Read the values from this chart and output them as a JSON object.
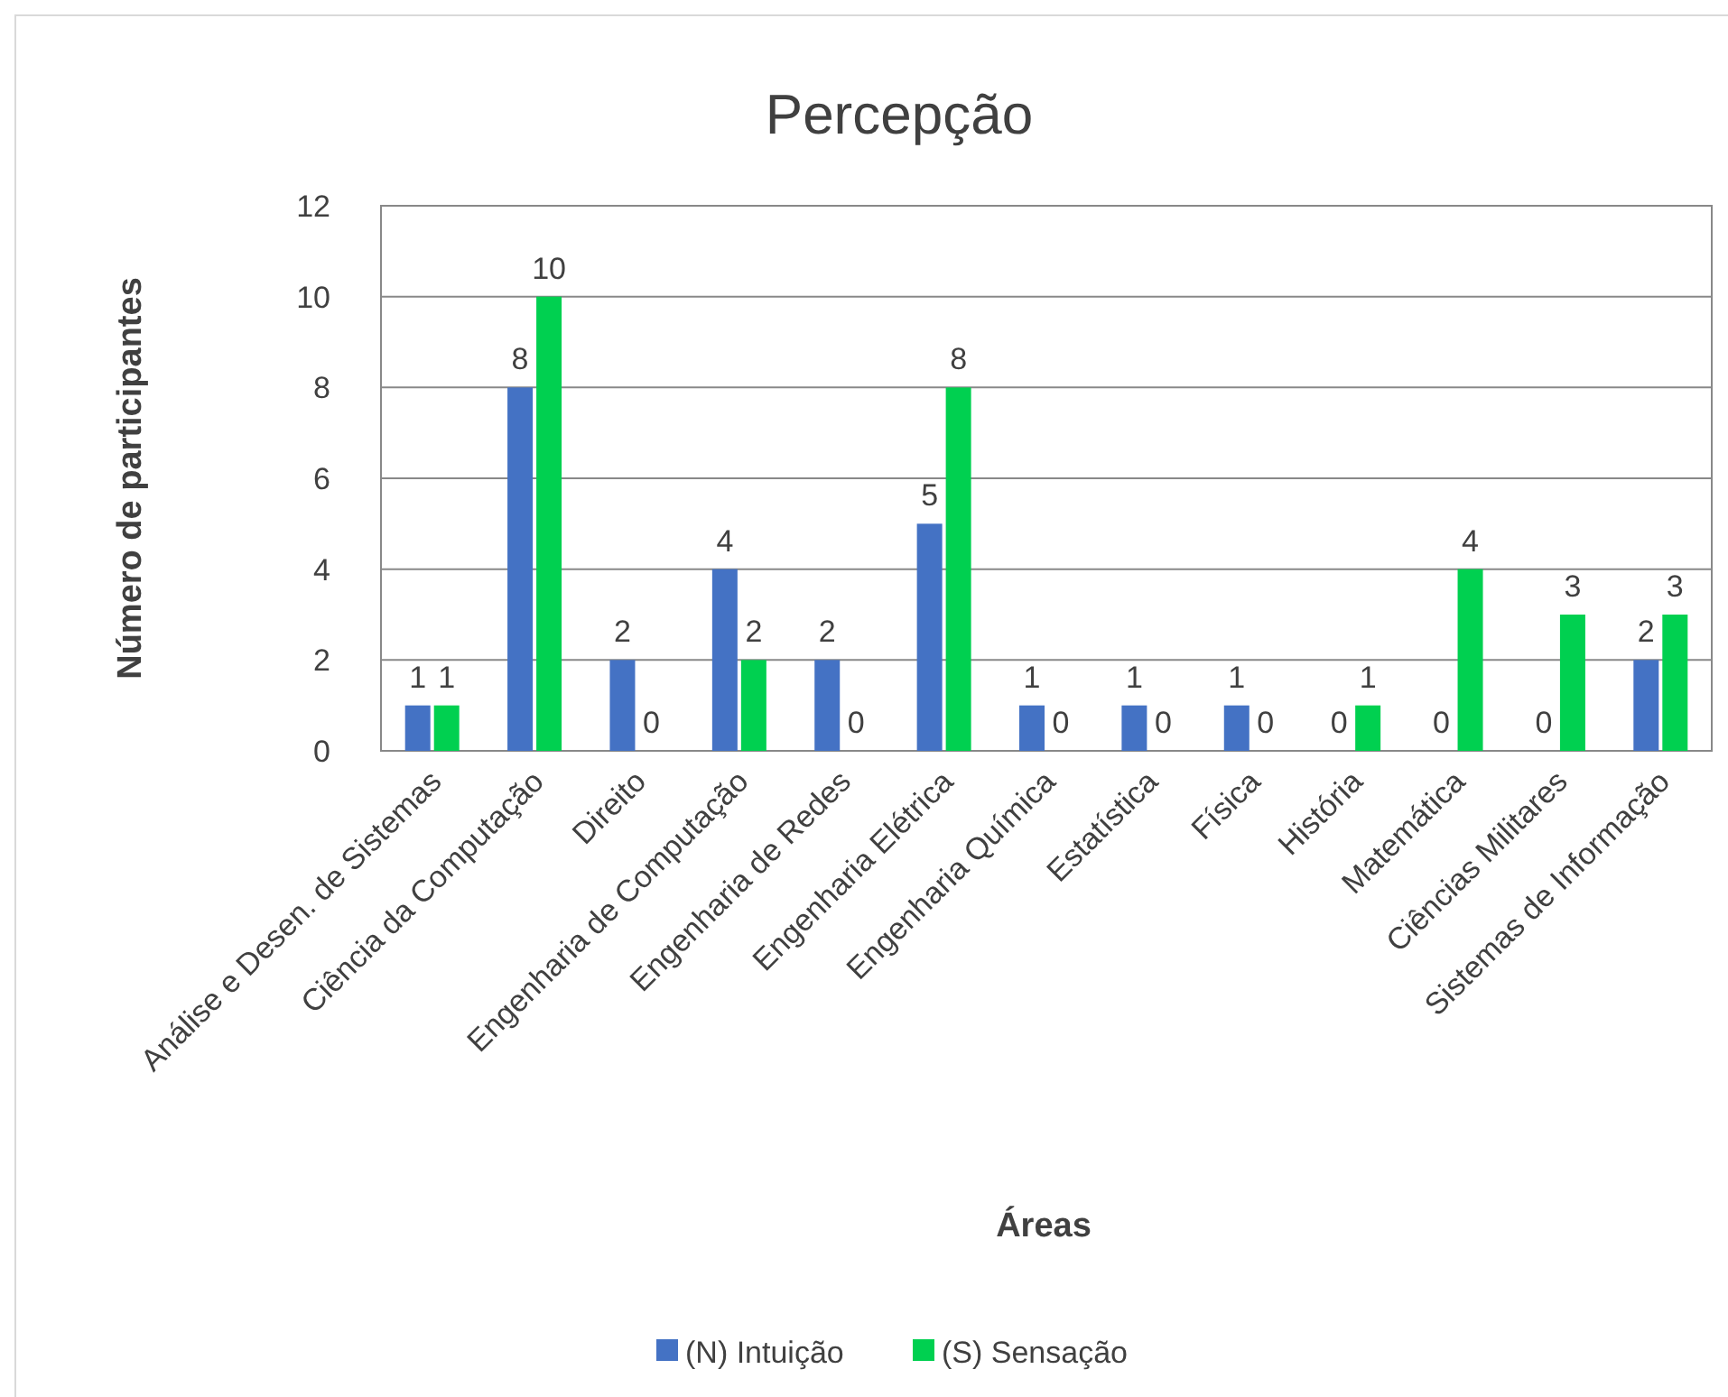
{
  "chart_data": {
    "type": "bar",
    "title": "Percepção",
    "xlabel": "Áreas",
    "ylabel": "Número de participantes",
    "categories": [
      "Análise e Desen. de Sistemas",
      "Ciência da Computação",
      "Direito",
      "Engenharia de Computação",
      "Engenharia de Redes",
      "Engenharia Elétrica",
      "Engenharia Química",
      "Estatística",
      "Física",
      "História",
      "Matemática",
      "Ciências Militares",
      "Sistemas de Informação"
    ],
    "series": [
      {
        "name": "(N) Intuição",
        "color": "#4472c4",
        "values": [
          1,
          8,
          2,
          4,
          2,
          5,
          1,
          1,
          1,
          0,
          0,
          0,
          2
        ]
      },
      {
        "name": "(S) Sensação",
        "color": "#00d050",
        "values": [
          1,
          10,
          0,
          2,
          0,
          8,
          0,
          0,
          0,
          1,
          4,
          3,
          3
        ]
      }
    ],
    "ylim": [
      0,
      12
    ],
    "yticks": [
      0,
      2,
      4,
      6,
      8,
      10,
      12
    ],
    "grid": "y",
    "legend": "bottom",
    "data_labels": true
  }
}
